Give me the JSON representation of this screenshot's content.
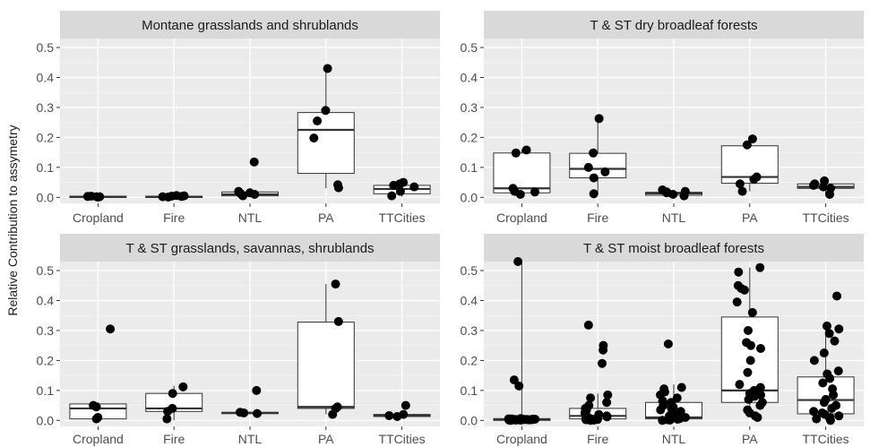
{
  "chart_data": {
    "type": "boxplot",
    "ylabel": "Relative Contribution to assymetry",
    "xlabel": "",
    "categories": [
      "Cropland",
      "Fire",
      "NTL",
      "PA",
      "TTCities"
    ],
    "ylim": [
      -0.02,
      0.53
    ],
    "yticks": [
      "0.0",
      "0.1",
      "0.2",
      "0.3",
      "0.4",
      "0.5"
    ],
    "grid": true,
    "panels": [
      {
        "title": "Montane grasslands and shrublands",
        "groups": [
          {
            "category": "Cropland",
            "box": {
              "q1": 0.0,
              "median": 0.002,
              "q3": 0.004,
              "whisker_low": 0.0,
              "whisker_high": 0.005
            },
            "points": [
              0.001,
              0.002,
              0.003,
              0.004,
              0.002,
              0.001
            ]
          },
          {
            "category": "Fire",
            "box": {
              "q1": 0.0,
              "median": 0.002,
              "q3": 0.004,
              "whisker_low": 0.0,
              "whisker_high": 0.006
            },
            "points": [
              0.002,
              0.005,
              0.006,
              0.004,
              0.001,
              0.003
            ]
          },
          {
            "category": "NTL",
            "box": {
              "q1": 0.005,
              "median": 0.01,
              "q3": 0.018,
              "whisker_low": 0.0,
              "whisker_high": 0.03
            },
            "points": [
              0.118,
              0.02,
              0.015,
              0.005,
              0.01,
              0.012
            ]
          },
          {
            "category": "PA",
            "box": {
              "q1": 0.08,
              "median": 0.225,
              "q3": 0.283,
              "whisker_low": 0.03,
              "whisker_high": 0.43
            },
            "points": [
              0.43,
              0.29,
              0.255,
              0.198,
              0.042,
              0.032
            ]
          },
          {
            "category": "TTCities",
            "box": {
              "q1": 0.012,
              "median": 0.028,
              "q3": 0.04,
              "whisker_low": 0.002,
              "whisker_high": 0.05
            },
            "points": [
              0.005,
              0.02,
              0.035,
              0.04,
              0.045,
              0.05
            ]
          }
        ]
      },
      {
        "title": "T & ST dry broadleaf forests",
        "groups": [
          {
            "category": "Cropland",
            "box": {
              "q1": 0.015,
              "median": 0.03,
              "q3": 0.148,
              "whisker_low": 0.005,
              "whisker_high": 0.16
            },
            "points": [
              0.158,
              0.148,
              0.03,
              0.018,
              0.01,
              0.02
            ]
          },
          {
            "category": "Fire",
            "box": {
              "q1": 0.065,
              "median": 0.095,
              "q3": 0.147,
              "whisker_low": 0.01,
              "whisker_high": 0.265
            },
            "points": [
              0.263,
              0.148,
              0.1,
              0.085,
              0.065,
              0.012
            ]
          },
          {
            "category": "NTL",
            "box": {
              "q1": 0.007,
              "median": 0.013,
              "q3": 0.017,
              "whisker_low": 0.003,
              "whisker_high": 0.025
            },
            "points": [
              0.025,
              0.02,
              0.015,
              0.005,
              0.01,
              0.018
            ]
          },
          {
            "category": "PA",
            "box": {
              "q1": 0.047,
              "median": 0.068,
              "q3": 0.172,
              "whisker_low": 0.02,
              "whisker_high": 0.195
            },
            "points": [
              0.195,
              0.175,
              0.068,
              0.06,
              0.045,
              0.02
            ]
          },
          {
            "category": "TTCities",
            "box": {
              "q1": 0.03,
              "median": 0.035,
              "q3": 0.045,
              "whisker_low": 0.01,
              "whisker_high": 0.055
            },
            "points": [
              0.055,
              0.045,
              0.04,
              0.035,
              0.03,
              0.01
            ]
          }
        ]
      },
      {
        "title": "T & ST grasslands, savannas, shrublands",
        "groups": [
          {
            "category": "Cropland",
            "box": {
              "q1": 0.005,
              "median": 0.04,
              "q3": 0.055,
              "whisker_low": 0.0,
              "whisker_high": 0.06
            },
            "points": [
              0.305,
              0.05,
              0.045,
              0.01,
              0.005
            ]
          },
          {
            "category": "Fire",
            "box": {
              "q1": 0.03,
              "median": 0.04,
              "q3": 0.09,
              "whisker_low": 0.0,
              "whisker_high": 0.115
            },
            "points": [
              0.112,
              0.09,
              0.04,
              0.03,
              0.005
            ]
          },
          {
            "category": "NTL",
            "box": {
              "q1": 0.023,
              "median": 0.025,
              "q3": 0.027,
              "whisker_low": 0.02,
              "whisker_high": 0.03
            },
            "points": [
              0.1,
              0.027,
              0.025,
              0.023
            ]
          },
          {
            "category": "PA",
            "box": {
              "q1": 0.04,
              "median": 0.045,
              "q3": 0.328,
              "whisker_low": 0.02,
              "whisker_high": 0.455
            },
            "points": [
              0.455,
              0.33,
              0.045,
              0.04,
              0.02
            ]
          },
          {
            "category": "TTCities",
            "box": {
              "q1": 0.013,
              "median": 0.016,
              "q3": 0.02,
              "whisker_low": 0.01,
              "whisker_high": 0.022
            },
            "points": [
              0.05,
              0.02,
              0.016,
              0.013
            ]
          }
        ]
      },
      {
        "title": "T & ST moist broadleaf forests",
        "groups": [
          {
            "category": "Cropland",
            "box": {
              "q1": 0.0,
              "median": 0.003,
              "q3": 0.006,
              "whisker_low": 0.0,
              "whisker_high": 0.53
            },
            "points": [
              0.53,
              0.135,
              0.115,
              0.003,
              0.002,
              0.001,
              0.004,
              0.005,
              0.002,
              0.003,
              0.001,
              0.0,
              0.004,
              0.006,
              0.002,
              0.003,
              0.001,
              0.005,
              0.002,
              0.004,
              0.003,
              0.001
            ]
          },
          {
            "category": "Fire",
            "box": {
              "q1": 0.005,
              "median": 0.015,
              "q3": 0.04,
              "whisker_low": 0.0,
              "whisker_high": 0.09
            },
            "points": [
              0.318,
              0.25,
              0.235,
              0.19,
              0.085,
              0.075,
              0.06,
              0.05,
              0.04,
              0.035,
              0.025,
              0.02,
              0.015,
              0.012,
              0.01,
              0.008,
              0.005,
              0.004,
              0.003,
              0.002,
              0.001,
              0.0
            ]
          },
          {
            "category": "NTL",
            "box": {
              "q1": 0.005,
              "median": 0.01,
              "q3": 0.06,
              "whisker_low": 0.0,
              "whisker_high": 0.12
            },
            "points": [
              0.255,
              0.11,
              0.105,
              0.095,
              0.085,
              0.075,
              0.065,
              0.06,
              0.05,
              0.045,
              0.04,
              0.035,
              0.03,
              0.025,
              0.02,
              0.015,
              0.01,
              0.006,
              0.004,
              0.002,
              0.001,
              0.0
            ]
          },
          {
            "category": "PA",
            "box": {
              "q1": 0.06,
              "median": 0.1,
              "q3": 0.345,
              "whisker_low": 0.01,
              "whisker_high": 0.51
            },
            "points": [
              0.51,
              0.495,
              0.45,
              0.44,
              0.435,
              0.395,
              0.36,
              0.3,
              0.26,
              0.25,
              0.24,
              0.2,
              0.16,
              0.12,
              0.11,
              0.1,
              0.09,
              0.085,
              0.08,
              0.07,
              0.06,
              0.05,
              0.035,
              0.025,
              0.015,
              0.01
            ]
          },
          {
            "category": "TTCities",
            "box": {
              "q1": 0.022,
              "median": 0.068,
              "q3": 0.145,
              "whisker_low": 0.0,
              "whisker_high": 0.32
            },
            "points": [
              0.415,
              0.315,
              0.305,
              0.29,
              0.265,
              0.225,
              0.2,
              0.165,
              0.155,
              0.14,
              0.125,
              0.105,
              0.085,
              0.07,
              0.06,
              0.05,
              0.04,
              0.03,
              0.025,
              0.02,
              0.015,
              0.01,
              0.005,
              0.0
            ]
          }
        ]
      }
    ]
  }
}
